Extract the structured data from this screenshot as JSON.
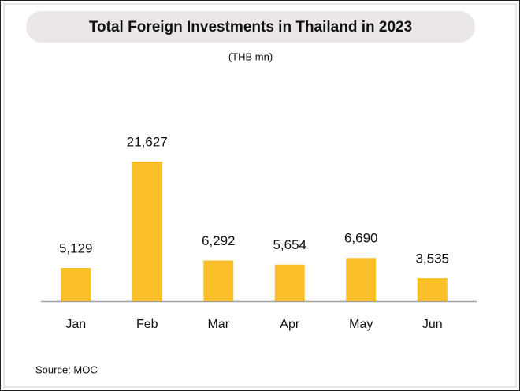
{
  "chart_data": {
    "type": "bar",
    "title": "Total Foreign Investments in Thailand in 2023",
    "subtitle": "(THB mn)",
    "categories": [
      "Jan",
      "Feb",
      "Mar",
      "Apr",
      "May",
      "Jun"
    ],
    "values": [
      5129,
      21627,
      6292,
      5654,
      6690,
      3535
    ],
    "value_labels": [
      "5,129",
      "21,627",
      "6,292",
      "5,654",
      "6,690",
      "3,535"
    ],
    "color": "#fbbf2a",
    "source": "Source: MOC"
  }
}
